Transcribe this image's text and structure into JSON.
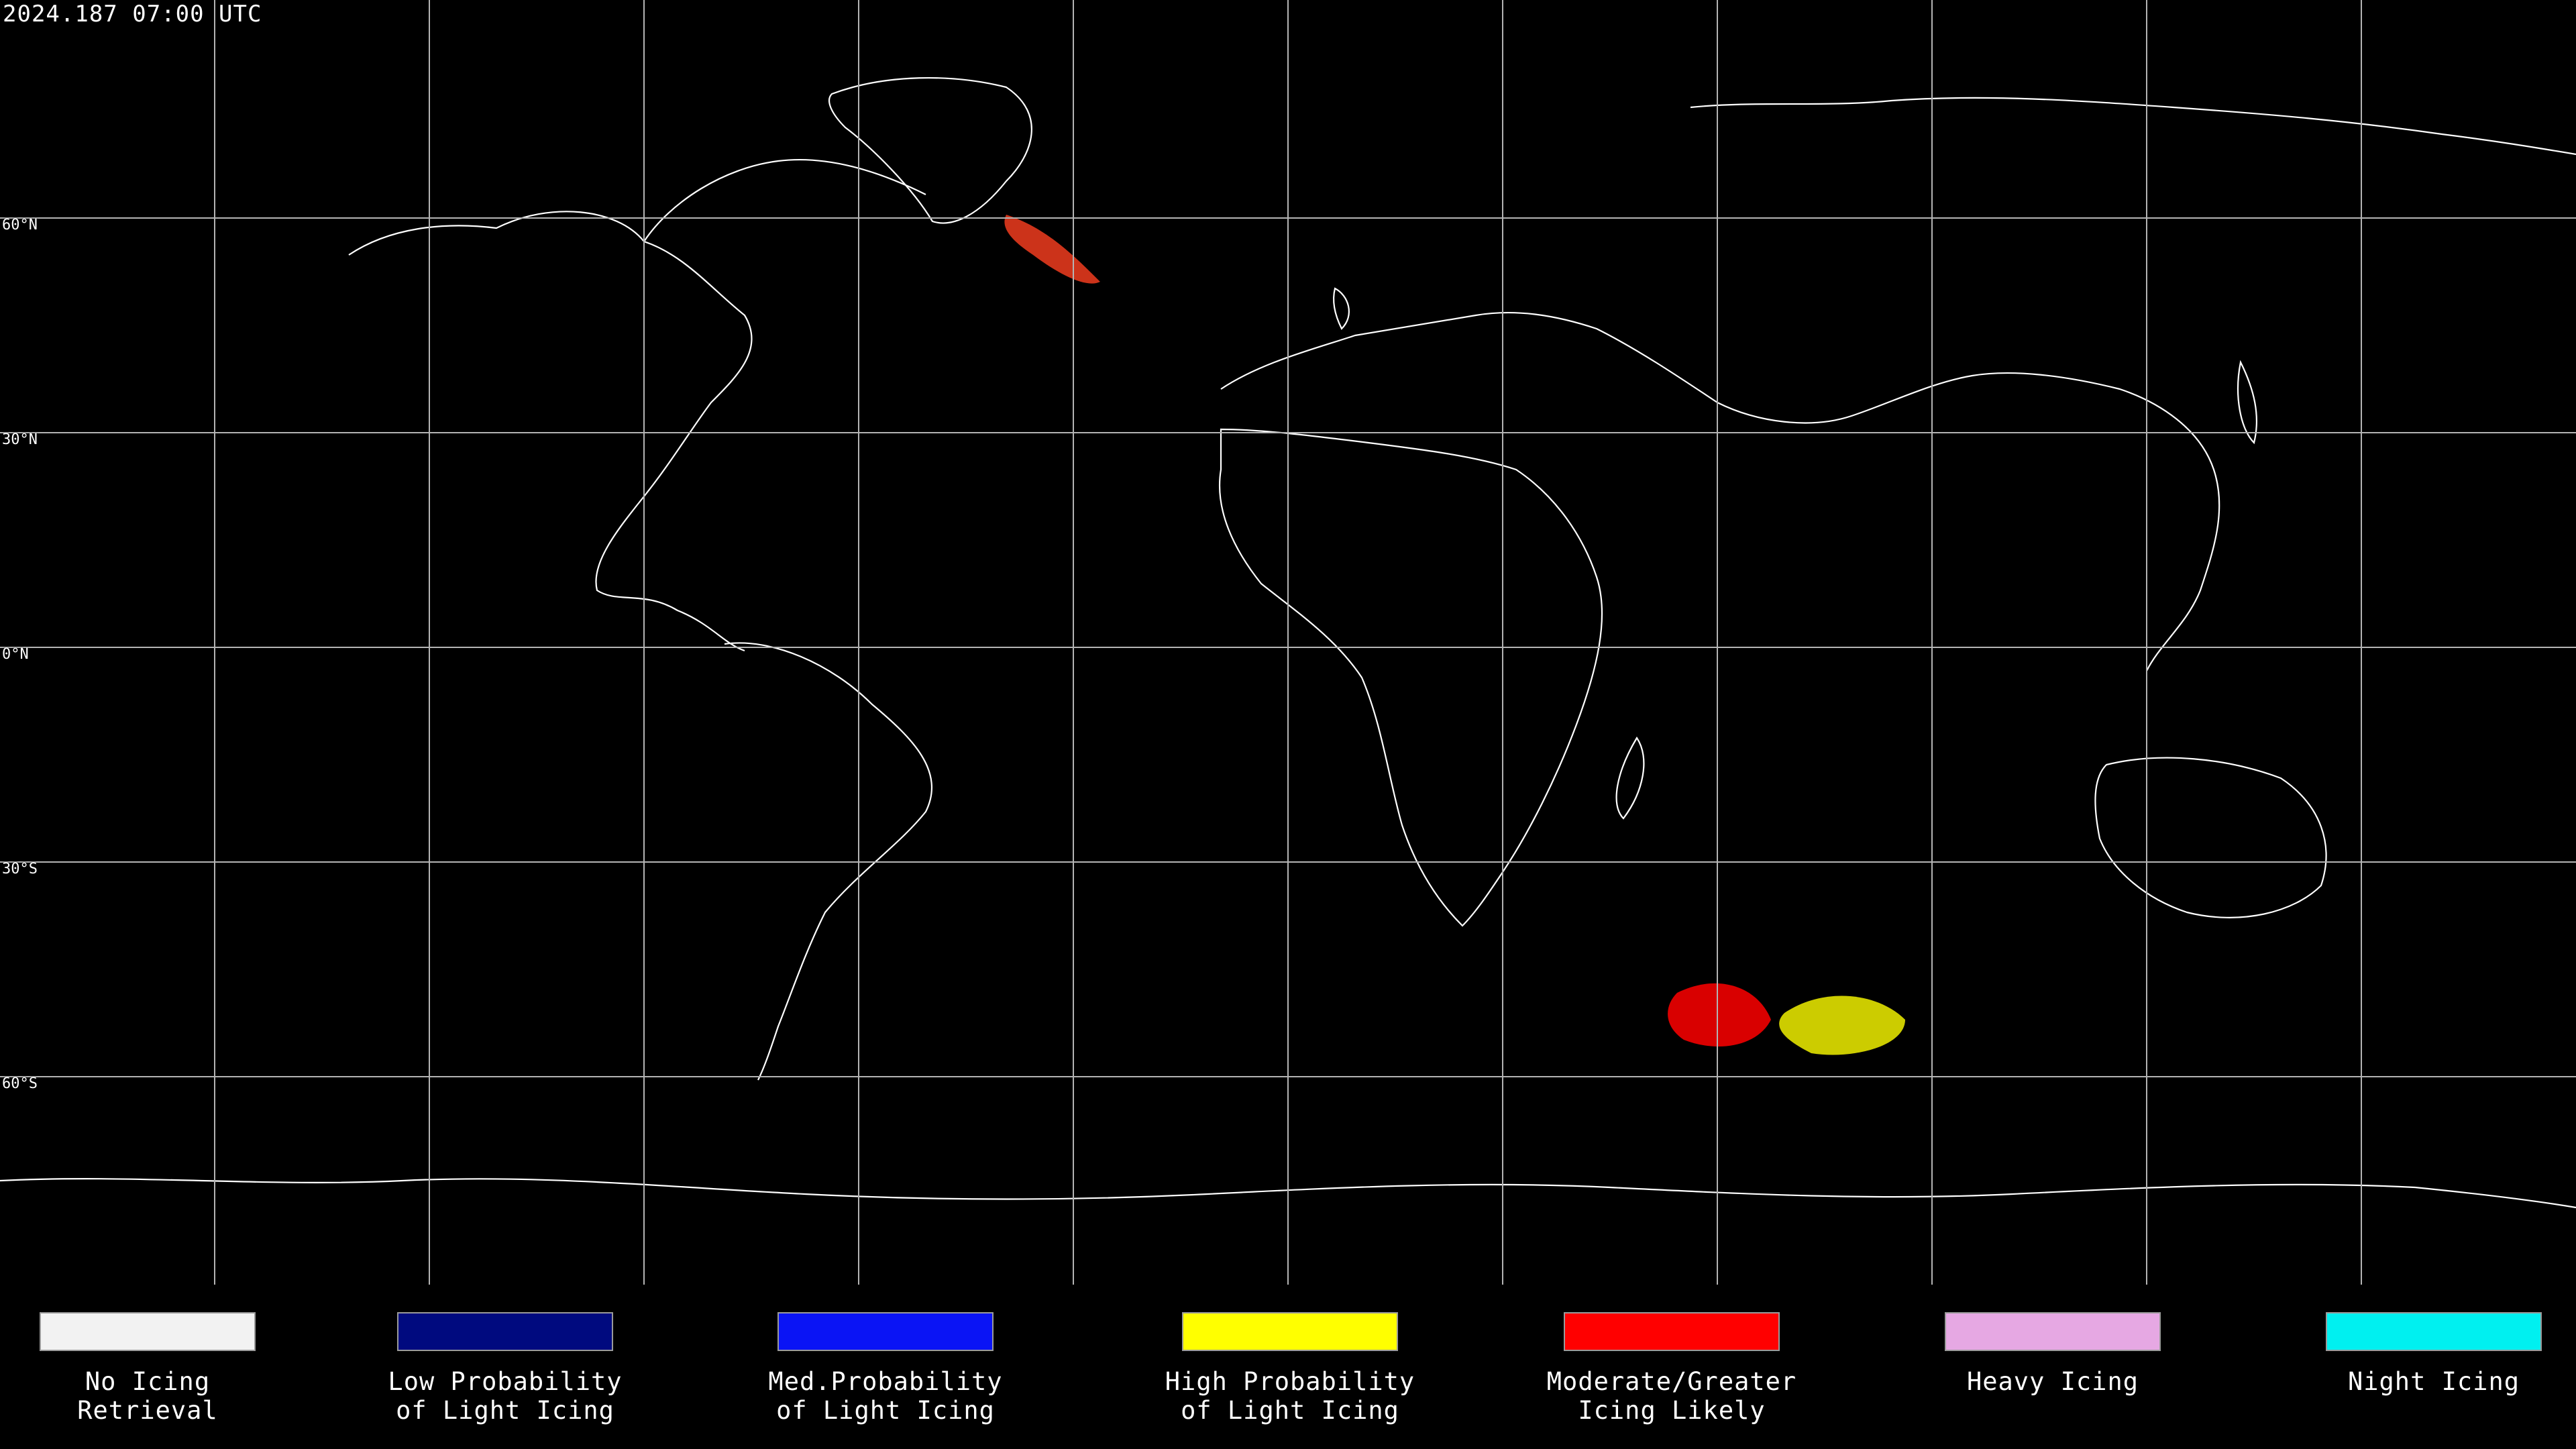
{
  "header": {
    "timestamp": "2024.187 07:00 UTC"
  },
  "map": {
    "latitude_labels": [
      "60°N",
      "30°N",
      "0°N",
      "30°S",
      "60°S"
    ],
    "graticule": "30° latitude / longitude grid"
  },
  "legend": {
    "items": [
      {
        "key": "no_icing_retrieval",
        "line1": "No Icing",
        "line2": "Retrieval",
        "color": "#f2f2f2"
      },
      {
        "key": "low_probability_light",
        "line1": "Low Probability",
        "line2": "of Light Icing",
        "color": "#000a7f"
      },
      {
        "key": "med_probability_light",
        "line1": "Med.Probability",
        "line2": "of Light Icing",
        "color": "#0a14f5"
      },
      {
        "key": "high_probability_light",
        "line1": "High Probability",
        "line2": "of Light Icing",
        "color": "#ffff00"
      },
      {
        "key": "moderate_greater_likely",
        "line1": "Moderate/Greater",
        "line2": "Icing Likely",
        "color": "#ff0000"
      },
      {
        "key": "heavy_icing",
        "line1": "Heavy Icing",
        "line2": "",
        "color": "#e6a8e3"
      },
      {
        "key": "night_icing",
        "line1": "Night Icing",
        "line2": "",
        "color": "#00f0f0"
      }
    ]
  },
  "colors": {
    "background": "#000000",
    "graticule": "#b4b4b4",
    "coastline": "#ffffff"
  }
}
